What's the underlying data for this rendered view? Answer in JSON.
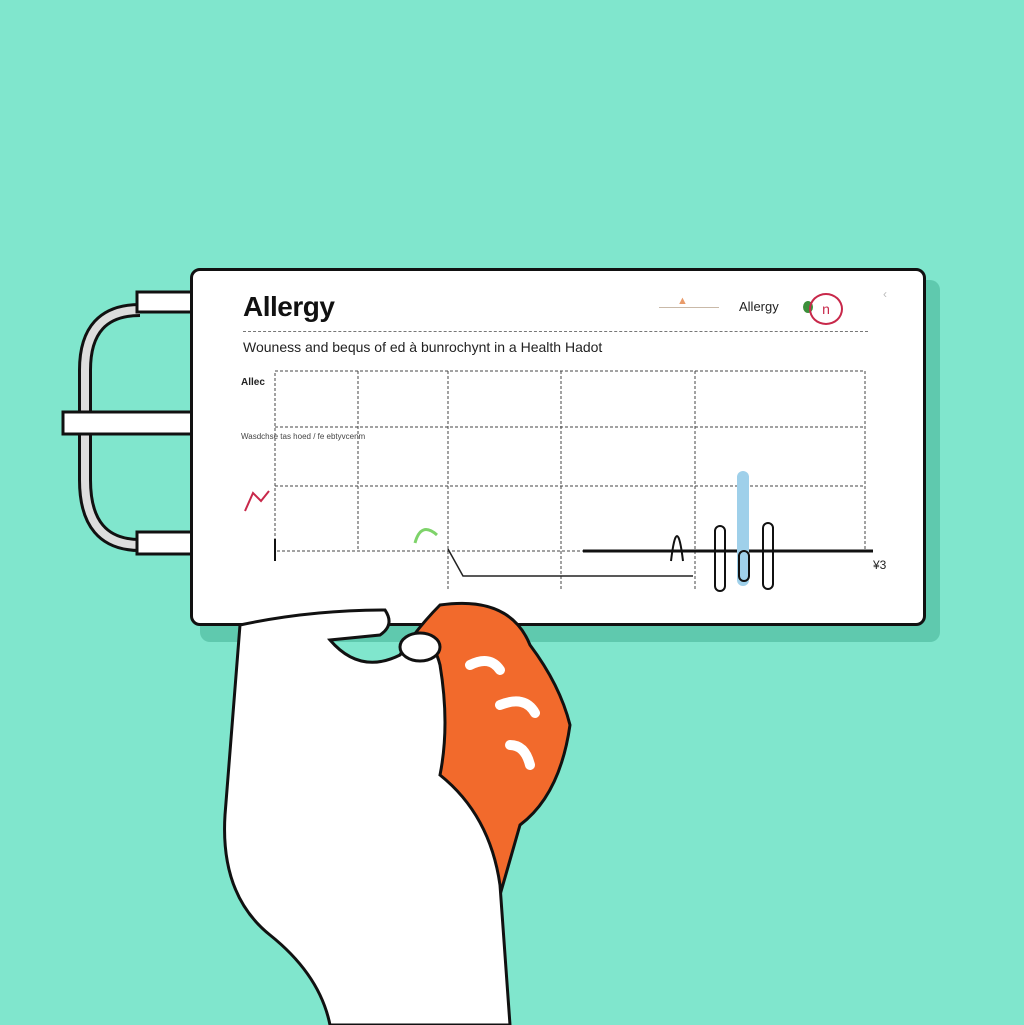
{
  "card": {
    "title": "Allergy",
    "top_right_label": "Allergy",
    "badge_text": "n",
    "subtitle": "Wouness and bequs of ed à bunrochynt in a Health Hadot",
    "chart": {
      "y_label_top": "Allec",
      "y_label_mid": "Wasdchse tas hoed / fe ebtyvcenm",
      "end_label": "¥3"
    }
  },
  "colors": {
    "background": "#80e6cd",
    "hand_glove": "#f26a2c",
    "accent_red": "#c8284a",
    "bar_blue": "#9fd0ea",
    "accent_green": "#7ed36a"
  }
}
